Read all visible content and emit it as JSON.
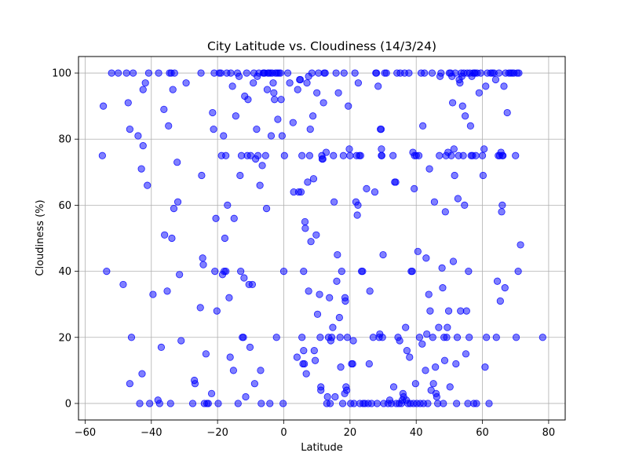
{
  "chart_data": {
    "type": "scatter",
    "title": "City Latitude vs. Cloudiness (14/3/24)",
    "xlabel": "Latitude",
    "ylabel": "Cloudiness (%)",
    "xlim": [
      -62,
      85
    ],
    "ylim": [
      -5,
      105
    ],
    "xticks": [
      -60,
      -40,
      -20,
      0,
      20,
      40,
      60,
      80
    ],
    "yticks": [
      0,
      20,
      40,
      60,
      80,
      100
    ],
    "grid": true,
    "marker_color": "#0000ff",
    "points": [
      [
        -54.8,
        75
      ],
      [
        -54.5,
        90
      ],
      [
        -53.5,
        40
      ],
      [
        -52,
        100
      ],
      [
        -50,
        100
      ],
      [
        -48.5,
        36
      ],
      [
        -47.5,
        100
      ],
      [
        -47,
        91
      ],
      [
        -46.5,
        83
      ],
      [
        -46.5,
        6
      ],
      [
        -46,
        20
      ],
      [
        -45.5,
        100
      ],
      [
        -44,
        81
      ],
      [
        -43.5,
        0
      ],
      [
        -43,
        71
      ],
      [
        -42.8,
        9
      ],
      [
        -42.5,
        78
      ],
      [
        -42.5,
        95
      ],
      [
        -41.8,
        97
      ],
      [
        -41.2,
        66
      ],
      [
        -40.8,
        100
      ],
      [
        -40.5,
        0
      ],
      [
        -39.5,
        33
      ],
      [
        -38,
        1
      ],
      [
        -37.8,
        100
      ],
      [
        -37.5,
        0
      ],
      [
        -37,
        17
      ],
      [
        -36.2,
        89
      ],
      [
        -36,
        51
      ],
      [
        -35.2,
        34
      ],
      [
        -34.8,
        84
      ],
      [
        -34.5,
        100
      ],
      [
        -34.2,
        0
      ],
      [
        -34,
        100
      ],
      [
        -33.8,
        50
      ],
      [
        -33.5,
        95
      ],
      [
        -33.2,
        59
      ],
      [
        -33,
        100
      ],
      [
        -32.2,
        73
      ],
      [
        -32,
        61
      ],
      [
        -31.5,
        39
      ],
      [
        -31,
        19
      ],
      [
        -29.5,
        97
      ],
      [
        -27.5,
        0
      ],
      [
        -27,
        7
      ],
      [
        -26.8,
        6
      ],
      [
        -25.2,
        29
      ],
      [
        -25,
        100
      ],
      [
        -24.8,
        69
      ],
      [
        -24.5,
        44
      ],
      [
        -24.3,
        42
      ],
      [
        -24,
        0
      ],
      [
        -23.5,
        15
      ],
      [
        -23.2,
        0
      ],
      [
        -22.8,
        0
      ],
      [
        -21.8,
        3
      ],
      [
        -21.5,
        88
      ],
      [
        -21.2,
        83
      ],
      [
        -21,
        100
      ],
      [
        -20.8,
        40
      ],
      [
        -20.5,
        56
      ],
      [
        -20.2,
        28
      ],
      [
        -19.8,
        0
      ],
      [
        -19.5,
        100
      ],
      [
        -19,
        100
      ],
      [
        -18.8,
        75
      ],
      [
        -18.5,
        39
      ],
      [
        -18.2,
        81
      ],
      [
        -18,
        40
      ],
      [
        -17.8,
        50
      ],
      [
        -17.5,
        75
      ],
      [
        -17.5,
        40
      ],
      [
        -17.2,
        100
      ],
      [
        -17,
        60
      ],
      [
        -16.5,
        32
      ],
      [
        -16.2,
        14
      ],
      [
        -16,
        100
      ],
      [
        -15.5,
        96
      ],
      [
        -15.2,
        10
      ],
      [
        -15,
        56
      ],
      [
        -14.5,
        87
      ],
      [
        -14,
        100
      ],
      [
        -13.8,
        0
      ],
      [
        -13.5,
        99
      ],
      [
        -13.2,
        69
      ],
      [
        -13,
        40
      ],
      [
        -12.8,
        75
      ],
      [
        -12.5,
        20
      ],
      [
        -12.2,
        20
      ],
      [
        -12,
        38
      ],
      [
        -11.8,
        93
      ],
      [
        -11.5,
        2
      ],
      [
        -11.2,
        100
      ],
      [
        -11,
        75
      ],
      [
        -10.8,
        92
      ],
      [
        -10.5,
        36
      ],
      [
        -10.2,
        17
      ],
      [
        -10,
        75
      ],
      [
        -9.5,
        36
      ],
      [
        -9.2,
        97
      ],
      [
        -9,
        100
      ],
      [
        -8.8,
        6
      ],
      [
        -8.5,
        74
      ],
      [
        -8.2,
        83
      ],
      [
        -8,
        99
      ],
      [
        -7.8,
        75
      ],
      [
        -7.5,
        100
      ],
      [
        -7.2,
        66
      ],
      [
        -7,
        10
      ],
      [
        -6.8,
        0
      ],
      [
        -6.5,
        72
      ],
      [
        -6.2,
        100
      ],
      [
        -6,
        100
      ],
      [
        -5.8,
        100
      ],
      [
        -5.5,
        75
      ],
      [
        -5.2,
        59
      ],
      [
        -5,
        95
      ],
      [
        -4.8,
        100
      ],
      [
        -4.5,
        100
      ],
      [
        -4.2,
        0
      ],
      [
        -4,
        100
      ],
      [
        -3.8,
        81
      ],
      [
        -3.5,
        100
      ],
      [
        -3.2,
        97
      ],
      [
        -3,
        94
      ],
      [
        -2.8,
        92
      ],
      [
        -2.5,
        100
      ],
      [
        -2.2,
        20
      ],
      [
        -2,
        100
      ],
      [
        -1.8,
        86
      ],
      [
        -1.5,
        100
      ],
      [
        -1,
        100
      ],
      [
        -0.8,
        92
      ],
      [
        -0.5,
        81
      ],
      [
        -0.2,
        0
      ],
      [
        0,
        40
      ],
      [
        0.2,
        75
      ],
      [
        1.2,
        100
      ],
      [
        1.8,
        97
      ],
      [
        2.8,
        85
      ],
      [
        3,
        64
      ],
      [
        4,
        14
      ],
      [
        4.2,
        95
      ],
      [
        4.5,
        64
      ],
      [
        4.8,
        98
      ],
      [
        5,
        98
      ],
      [
        5.2,
        64
      ],
      [
        5.5,
        75
      ],
      [
        5.5,
        20
      ],
      [
        5.8,
        12
      ],
      [
        6,
        40
      ],
      [
        6,
        16
      ],
      [
        6.2,
        12
      ],
      [
        6.4,
        55
      ],
      [
        6.5,
        53
      ],
      [
        6.8,
        9
      ],
      [
        7,
        97
      ],
      [
        7.2,
        67
      ],
      [
        7.5,
        99
      ],
      [
        7.5,
        34
      ],
      [
        7.8,
        75
      ],
      [
        8,
        83
      ],
      [
        8.2,
        49
      ],
      [
        8.5,
        100
      ],
      [
        8.8,
        87
      ],
      [
        9,
        68
      ],
      [
        9.2,
        16
      ],
      [
        9.5,
        13
      ],
      [
        9.8,
        51
      ],
      [
        10,
        94
      ],
      [
        10.2,
        27
      ],
      [
        10.5,
        100
      ],
      [
        10.8,
        33
      ],
      [
        11,
        20
      ],
      [
        11.2,
        5
      ],
      [
        11.2,
        4
      ],
      [
        11.5,
        75
      ],
      [
        11.6,
        74
      ],
      [
        11.8,
        74
      ],
      [
        12,
        91
      ],
      [
        12.2,
        100
      ],
      [
        12.5,
        100
      ],
      [
        12.8,
        76
      ],
      [
        13,
        0
      ],
      [
        13.2,
        2
      ],
      [
        13.5,
        20
      ],
      [
        13.8,
        32
      ],
      [
        14,
        0
      ],
      [
        14.2,
        19
      ],
      [
        14.5,
        20
      ],
      [
        14.8,
        23
      ],
      [
        15,
        75
      ],
      [
        15.2,
        61
      ],
      [
        15.5,
        2
      ],
      [
        15.8,
        100
      ],
      [
        16,
        37
      ],
      [
        16.2,
        45
      ],
      [
        16.5,
        94
      ],
      [
        16.8,
        26
      ],
      [
        17,
        20
      ],
      [
        17.2,
        11
      ],
      [
        17.5,
        40
      ],
      [
        17.8,
        0
      ],
      [
        18,
        75
      ],
      [
        18.2,
        100
      ],
      [
        18.4,
        3
      ],
      [
        18.5,
        32
      ],
      [
        18.6,
        31
      ],
      [
        18.8,
        5
      ],
      [
        19,
        4
      ],
      [
        19.2,
        20
      ],
      [
        19.5,
        90
      ],
      [
        19.8,
        77
      ],
      [
        20,
        75
      ],
      [
        20.2,
        0
      ],
      [
        20.5,
        12
      ],
      [
        20.8,
        12
      ],
      [
        21,
        19
      ],
      [
        21.2,
        0
      ],
      [
        21.5,
        100
      ],
      [
        21.8,
        61
      ],
      [
        22,
        75
      ],
      [
        22.2,
        57
      ],
      [
        22.4,
        60
      ],
      [
        22.5,
        97
      ],
      [
        22.8,
        75
      ],
      [
        23,
        0
      ],
      [
        23.2,
        75
      ],
      [
        23.5,
        40
      ],
      [
        23.8,
        40
      ],
      [
        24,
        0
      ],
      [
        24.5,
        0
      ],
      [
        25,
        65
      ],
      [
        25.5,
        0
      ],
      [
        25.8,
        12
      ],
      [
        26,
        34
      ],
      [
        26.5,
        0
      ],
      [
        27,
        20
      ],
      [
        27.5,
        64
      ],
      [
        27.8,
        100
      ],
      [
        28,
        100
      ],
      [
        28.2,
        0
      ],
      [
        28.5,
        96
      ],
      [
        28.8,
        20
      ],
      [
        29,
        21
      ],
      [
        29.2,
        83
      ],
      [
        29.4,
        83
      ],
      [
        29.5,
        77
      ],
      [
        29.5,
        75
      ],
      [
        29.6,
        75
      ],
      [
        29.8,
        20
      ],
      [
        30,
        45
      ],
      [
        30.2,
        0
      ],
      [
        30.5,
        100
      ],
      [
        31,
        100
      ],
      [
        31.5,
        0
      ],
      [
        32,
        1
      ],
      [
        32.5,
        0
      ],
      [
        33,
        75
      ],
      [
        33.2,
        5
      ],
      [
        33.5,
        67
      ],
      [
        33.8,
        67
      ],
      [
        34,
        0
      ],
      [
        34.2,
        100
      ],
      [
        34.5,
        20
      ],
      [
        34.8,
        0
      ],
      [
        35,
        19
      ],
      [
        35.2,
        100
      ],
      [
        35.5,
        0
      ],
      [
        35.8,
        1
      ],
      [
        36,
        3
      ],
      [
        36.2,
        2
      ],
      [
        36.5,
        100
      ],
      [
        36.8,
        23
      ],
      [
        37,
        1
      ],
      [
        37.2,
        16
      ],
      [
        37.5,
        0
      ],
      [
        37.8,
        100
      ],
      [
        38,
        14
      ],
      [
        38.2,
        0
      ],
      [
        38.5,
        40
      ],
      [
        38.8,
        40
      ],
      [
        39,
        76
      ],
      [
        39.2,
        0
      ],
      [
        39.4,
        65
      ],
      [
        39.5,
        75
      ],
      [
        39.8,
        6
      ],
      [
        40,
        75
      ],
      [
        40.2,
        0
      ],
      [
        40.5,
        46
      ],
      [
        40.8,
        75
      ],
      [
        41,
        20
      ],
      [
        41.2,
        0
      ],
      [
        41.5,
        100
      ],
      [
        41.8,
        18
      ],
      [
        42,
        84
      ],
      [
        42.2,
        0
      ],
      [
        42.5,
        100
      ],
      [
        42.8,
        10
      ],
      [
        43,
        44
      ],
      [
        43.2,
        21
      ],
      [
        43.5,
        0
      ],
      [
        43.8,
        33
      ],
      [
        44,
        71
      ],
      [
        44.2,
        28
      ],
      [
        44.5,
        4
      ],
      [
        44.8,
        100
      ],
      [
        45,
        20
      ],
      [
        45.2,
        6
      ],
      [
        45.5,
        61
      ],
      [
        45.8,
        11
      ],
      [
        46,
        3
      ],
      [
        46.2,
        2
      ],
      [
        46.5,
        0
      ],
      [
        46.8,
        23
      ],
      [
        47,
        75
      ],
      [
        47.2,
        99
      ],
      [
        47.5,
        100
      ],
      [
        47.8,
        41
      ],
      [
        48,
        35
      ],
      [
        48.2,
        0
      ],
      [
        48.4,
        20
      ],
      [
        48.6,
        13
      ],
      [
        48.8,
        58
      ],
      [
        49,
        75
      ],
      [
        49.2,
        20
      ],
      [
        49.4,
        23
      ],
      [
        49.6,
        76
      ],
      [
        49.8,
        28
      ],
      [
        50,
        100
      ],
      [
        50.2,
        5
      ],
      [
        50.4,
        100
      ],
      [
        50.6,
        75
      ],
      [
        50.8,
        99
      ],
      [
        51,
        91
      ],
      [
        51.2,
        43
      ],
      [
        51.4,
        77
      ],
      [
        51.6,
        69
      ],
      [
        51.8,
        100
      ],
      [
        52,
        12
      ],
      [
        52.2,
        0
      ],
      [
        52.4,
        20
      ],
      [
        52.6,
        62
      ],
      [
        52.8,
        75
      ],
      [
        53,
        98
      ],
      [
        53.2,
        97
      ],
      [
        53.4,
        28
      ],
      [
        53.6,
        100
      ],
      [
        53.8,
        99
      ],
      [
        54,
        90
      ],
      [
        54.2,
        75
      ],
      [
        54.4,
        100
      ],
      [
        54.6,
        60
      ],
      [
        54.8,
        87
      ],
      [
        55,
        15
      ],
      [
        55.2,
        28
      ],
      [
        55.4,
        100
      ],
      [
        55.6,
        0
      ],
      [
        55.8,
        40
      ],
      [
        56,
        20
      ],
      [
        56.2,
        100
      ],
      [
        56.4,
        84
      ],
      [
        56.6,
        75
      ],
      [
        56.8,
        99
      ],
      [
        57,
        75
      ],
      [
        57.2,
        100
      ],
      [
        57.4,
        0
      ],
      [
        57.6,
        100
      ],
      [
        57.8,
        100
      ],
      [
        58,
        75
      ],
      [
        58.2,
        0
      ],
      [
        58.4,
        100
      ],
      [
        59,
        94
      ],
      [
        59.5,
        100
      ],
      [
        60,
        75
      ],
      [
        60.2,
        69
      ],
      [
        60.5,
        77
      ],
      [
        60.8,
        11
      ],
      [
        61,
        96
      ],
      [
        61.2,
        20
      ],
      [
        61.5,
        100
      ],
      [
        62,
        0
      ],
      [
        62.5,
        100
      ],
      [
        63,
        100
      ],
      [
        63.5,
        100
      ],
      [
        64,
        98
      ],
      [
        64.2,
        20
      ],
      [
        64.5,
        37
      ],
      [
        64.8,
        75
      ],
      [
        65,
        100
      ],
      [
        65.2,
        75
      ],
      [
        65.4,
        31
      ],
      [
        65.6,
        76
      ],
      [
        65.8,
        58
      ],
      [
        66,
        75
      ],
      [
        66,
        60
      ],
      [
        66.2,
        75
      ],
      [
        66.5,
        96
      ],
      [
        66.8,
        35
      ],
      [
        67,
        100
      ],
      [
        67.5,
        88
      ],
      [
        68,
        100
      ],
      [
        68.5,
        100
      ],
      [
        69,
        100
      ],
      [
        69.5,
        100
      ],
      [
        70,
        75
      ],
      [
        70.2,
        20
      ],
      [
        70.5,
        100
      ],
      [
        70.8,
        40
      ],
      [
        71,
        100
      ],
      [
        71.5,
        48
      ],
      [
        78.2,
        20
      ]
    ]
  }
}
